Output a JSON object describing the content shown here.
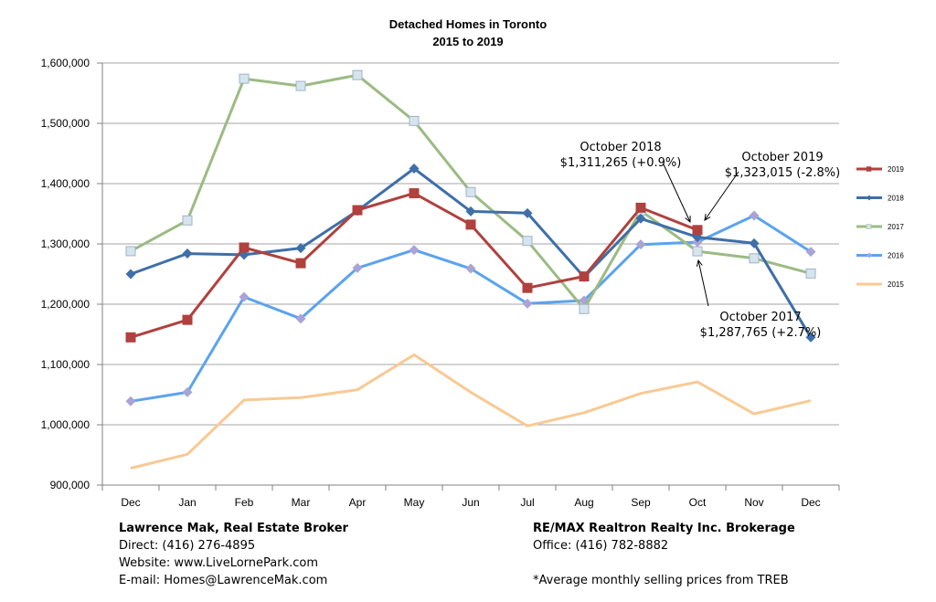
{
  "chart_data": {
    "type": "line",
    "title": "Detached Homes in Toronto",
    "subtitle": "2015 to 2019",
    "xlabel": "",
    "ylabel": "",
    "categories": [
      "Dec",
      "Jan",
      "Feb",
      "Mar",
      "Apr",
      "May",
      "Jun",
      "Jul",
      "Aug",
      "Sep",
      "Oct",
      "Nov",
      "Dec"
    ],
    "ylim": [
      900000,
      1600000
    ],
    "yticks": [
      "900,000",
      "1,000,000",
      "1,100,000",
      "1,200,000",
      "1,300,000",
      "1,400,000",
      "1,500,000",
      "1,600,000"
    ],
    "grid": "horizontal",
    "legend_position": "right",
    "series": [
      {
        "name": "2019",
        "color": "#b0413e",
        "marker": "square",
        "values": [
          1145000,
          1174000,
          1294000,
          1268000,
          1356000,
          1384000,
          1332000,
          1227000,
          1246000,
          1360000,
          1323015,
          null,
          null
        ]
      },
      {
        "name": "2018",
        "color": "#3e6fa8",
        "marker": "diamond",
        "values": [
          1250000,
          1284000,
          1282000,
          1293000,
          1355000,
          1425000,
          1354000,
          1351000,
          1245000,
          1342000,
          1311265,
          1301000,
          1145000
        ]
      },
      {
        "name": "2017",
        "color": "#9bbb83",
        "marker": "square",
        "values": [
          1288000,
          1339000,
          1574000,
          1562000,
          1580000,
          1504000,
          1386000,
          1305000,
          1192000,
          1355000,
          1287765,
          1276000,
          1251000
        ]
      },
      {
        "name": "2016",
        "color": "#5ba3ee",
        "marker": "diamond",
        "values": [
          1039000,
          1054000,
          1212000,
          1176000,
          1260000,
          1290000,
          1259000,
          1201000,
          1206000,
          1299000,
          1303000,
          1347000,
          1287000
        ]
      },
      {
        "name": "2015",
        "color": "#f9c993",
        "marker": "none",
        "values": [
          928000,
          951000,
          1041000,
          1045000,
          1058000,
          1116000,
          1054000,
          998000,
          1020000,
          1052000,
          1071000,
          1018000,
          1040000
        ]
      }
    ],
    "annotations": [
      {
        "lines": [
          "October 2018",
          "$1,311,265 (+0.9%)"
        ]
      },
      {
        "lines": [
          "October 2019",
          "$1,323,015 (-2.8%)"
        ]
      },
      {
        "lines": [
          "October 2017",
          "$1,287,765 (+2.7%)"
        ]
      }
    ]
  },
  "footer": {
    "broker_name": "Lawrence Mak, Real Estate Broker",
    "direct": "Direct:  (416) 276-4895",
    "website": "Website:  www.LiveLornePark.com",
    "email": "E-mail:  Homes@LawrenceMak.com",
    "brokerage": "RE/MAX Realtron Realty Inc. Brokerage",
    "office": "Office: (416) 782-8882",
    "note": "*Average monthly selling prices from TREB"
  }
}
